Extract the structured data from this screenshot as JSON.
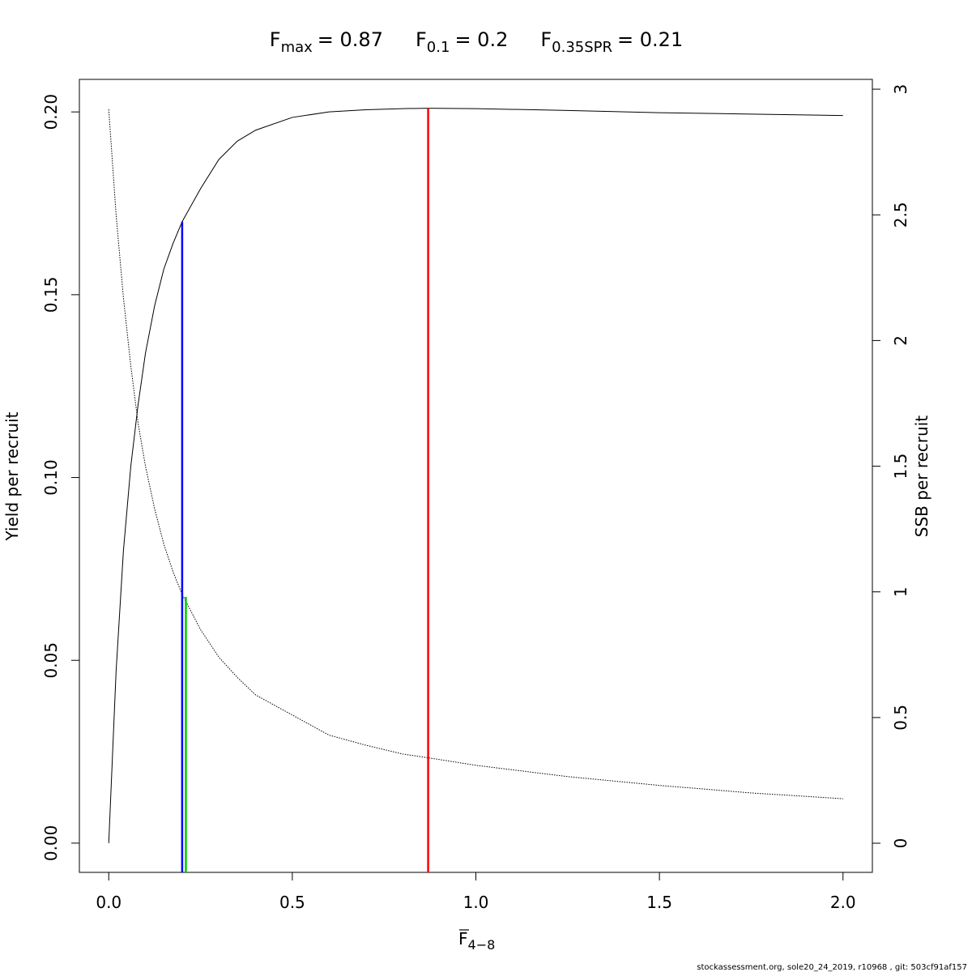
{
  "chart_data": {
    "type": "line",
    "title_parts": [
      {
        "main": "F",
        "sub": "max",
        "rest": "= 0.87"
      },
      {
        "main": "F",
        "sub": "0.1",
        "rest": "= 0.2"
      },
      {
        "main": "F",
        "sub": "0.35SPR",
        "rest": "= 0.21"
      }
    ],
    "xlabel": {
      "main": "F",
      "sub": "4−8"
    },
    "ylabel": "Yield per recruit",
    "y2label": "SSB per recruit",
    "footer": "stockassessment.org, sole20_24_2019, r10968 , git: 503cf91af157",
    "x": [
      0,
      0.02,
      0.04,
      0.06,
      0.08,
      0.1,
      0.125,
      0.15,
      0.175,
      0.2,
      0.25,
      0.3,
      0.35,
      0.4,
      0.5,
      0.6,
      0.7,
      0.8,
      0.87,
      1.0,
      1.25,
      1.5,
      1.75,
      2.0
    ],
    "series": [
      {
        "color": "#000000",
        "dash": "solid",
        "values": [
          0,
          0.047,
          0.08,
          0.103,
          0.12,
          0.134,
          0.147,
          0.157,
          0.164,
          0.17,
          0.179,
          0.187,
          0.192,
          0.195,
          0.1985,
          0.2,
          0.2006,
          0.2009,
          0.201,
          0.2009,
          0.2004,
          0.1998,
          0.1994,
          0.199
        ]
      },
      {
        "color": "#000000",
        "dash": "dotted",
        "axis": "y2",
        "values": [
          2.92,
          2.5,
          2.17,
          1.9,
          1.67,
          1.5,
          1.33,
          1.19,
          1.08,
          0.99,
          0.85,
          0.74,
          0.66,
          0.59,
          0.51,
          0.43,
          0.39,
          0.355,
          0.34,
          0.31,
          0.265,
          0.23,
          0.2,
          0.177
        ]
      }
    ],
    "reference_lines": [
      {
        "x": 0.87,
        "y": 0.201,
        "color": "#ff0000"
      },
      {
        "x": 0.2,
        "y": 0.17,
        "color": "#0000ff"
      },
      {
        "x": 0.21,
        "y": 0.98,
        "axis": "y2",
        "color": "#00cd00"
      }
    ],
    "xlim": [
      -0.08,
      2.08
    ],
    "ylim": [
      -0.008,
      0.2089
    ],
    "y2lim": [
      -0.116,
      3.039
    ],
    "xticks": [
      {
        "value": 0,
        "label": "0.0"
      },
      {
        "value": 0.5,
        "label": "0.5"
      },
      {
        "value": 1,
        "label": "1.0"
      },
      {
        "value": 1.5,
        "label": "1.5"
      },
      {
        "value": 2,
        "label": "2.0"
      }
    ],
    "yticks": [
      {
        "value": 0,
        "label": "0.00"
      },
      {
        "value": 0.05,
        "label": "0.05"
      },
      {
        "value": 0.1,
        "label": "0.10"
      },
      {
        "value": 0.15,
        "label": "0.15"
      },
      {
        "value": 0.2,
        "label": "0.20"
      }
    ],
    "y2ticks": [
      0,
      0.5,
      1,
      1.5,
      2,
      2.5,
      3
    ]
  }
}
